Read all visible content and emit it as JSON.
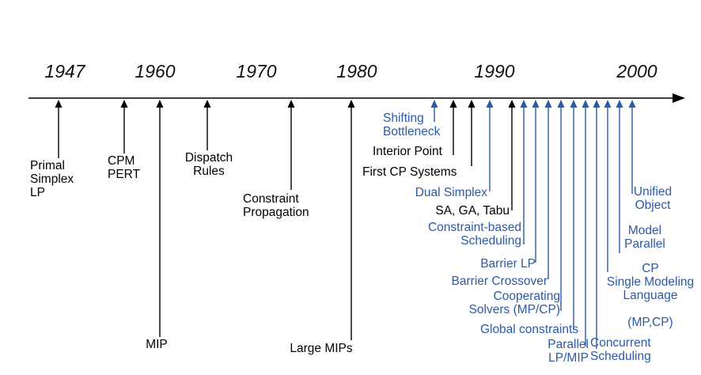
{
  "colors": {
    "black": "#000000",
    "blue": "#2b5aa8"
  },
  "years": [
    "1947",
    "1960",
    "1970",
    "1980",
    "1990",
    "2000"
  ],
  "events": [
    {
      "label": "Primal\nSimplex\nLP",
      "color": "black"
    },
    {
      "label": "CPM\nPERT",
      "color": "black"
    },
    {
      "label": "MIP",
      "color": "black"
    },
    {
      "label": "Dispatch\nRules",
      "color": "black"
    },
    {
      "label": "Constraint\nPropagation",
      "color": "black"
    },
    {
      "label": "Large MIPs",
      "color": "black"
    },
    {
      "label": "Shifting\nBottleneck",
      "color": "blue"
    },
    {
      "label": "Interior Point",
      "color": "black"
    },
    {
      "label": "First CP Systems",
      "color": "black"
    },
    {
      "label": "Dual Simplex",
      "color": "blue"
    },
    {
      "label": "SA, GA, Tabu",
      "color": "black"
    },
    {
      "label": "Constraint-based\nScheduling",
      "color": "blue"
    },
    {
      "label": "Barrier LP",
      "color": "blue"
    },
    {
      "label": "Barrier Crossover",
      "color": "blue"
    },
    {
      "label": "Cooperating\nSolvers (MP/CP)",
      "color": "blue"
    },
    {
      "label": "Global constraints",
      "color": "blue"
    },
    {
      "label": "Parallel\nLP/MIP",
      "color": "blue"
    },
    {
      "label": "Concurrent\nScheduling",
      "color": "blue"
    },
    {
      "label": "CP\nSingle Modeling\nLanguage\n\n(MP,CP)",
      "color": "blue"
    },
    {
      "label": "Model\nParallel",
      "color": "blue"
    },
    {
      "label": "Unified\nObject",
      "color": "blue"
    }
  ]
}
